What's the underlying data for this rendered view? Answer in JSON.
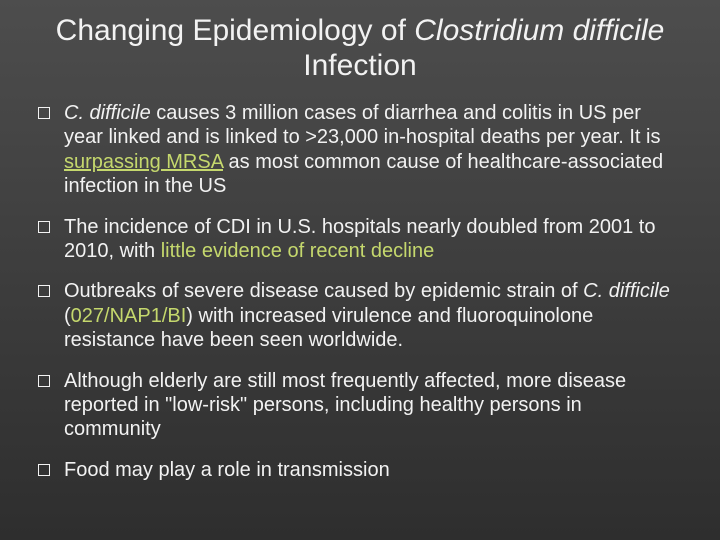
{
  "colors": {
    "background_top": "#4d4d4d",
    "background_bottom": "#2e2e2e",
    "text": "#f2f2f2",
    "accent": "#c5d86d",
    "bullet_border": "#f2f2f2"
  },
  "typography": {
    "title_fontsize": 30,
    "body_fontsize": 20,
    "font_family": "Arial"
  },
  "title": {
    "plain1": "Changing Epidemiology of ",
    "italic": "Clostridium difficile",
    "plain2": " Infection"
  },
  "bullets": [
    {
      "runs": [
        {
          "kind": "italic",
          "text": "C. difficile"
        },
        {
          "kind": "plain",
          "text": " causes 3 million cases of diarrhea and colitis in US per year linked and is linked to >23,000 in-hospital deaths per year. It is "
        },
        {
          "kind": "accent-uline",
          "text": "surpassing MRSA"
        },
        {
          "kind": "plain",
          "text": " as most common cause of healthcare-associated infection in the US"
        }
      ]
    },
    {
      "runs": [
        {
          "kind": "plain",
          "text": "The incidence of CDI in U.S. hospitals nearly doubled from 2001 to 2010, with "
        },
        {
          "kind": "accent",
          "text": "little evidence of recent decline"
        }
      ]
    },
    {
      "runs": [
        {
          "kind": "plain",
          "text": "Outbreaks of severe disease caused by epidemic strain of "
        },
        {
          "kind": "italic",
          "text": "C. difficile"
        },
        {
          "kind": "plain",
          "text": " ("
        },
        {
          "kind": "accent",
          "text": "027/NAP1/BI"
        },
        {
          "kind": "plain",
          "text": ") with increased virulence and fluoroquinolone resistance have been seen worldwide."
        }
      ]
    },
    {
      "runs": [
        {
          "kind": "plain",
          "text": "Although elderly are still most frequently affected, more disease reported in \"low-risk\" persons, including healthy persons in community"
        }
      ]
    },
    {
      "runs": [
        {
          "kind": "plain",
          "text": "Food may play a role in transmission"
        }
      ]
    }
  ]
}
